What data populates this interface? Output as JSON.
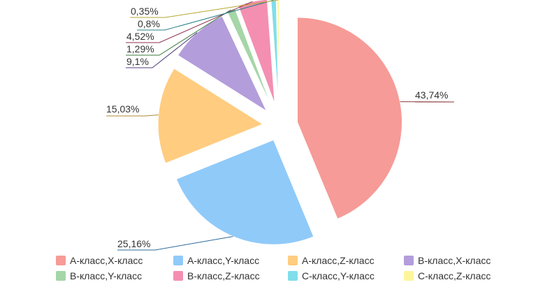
{
  "chart_data": {
    "type": "pie",
    "exploded": true,
    "legend_position": "bottom",
    "slices": [
      {
        "name": "A-класс,X-класс",
        "value": 43.74,
        "label": "43,74%",
        "color": "#f69b97",
        "line_color": "#8c3a3a"
      },
      {
        "name": "A-класс,Y-класс",
        "value": 25.16,
        "label": "25,16%",
        "color": "#90caf9",
        "line_color": "#2e6b9c"
      },
      {
        "name": "A-класс,Z-класс",
        "value": 15.03,
        "label": "15,03%",
        "color": "#ffcc80",
        "line_color": "#b08836"
      },
      {
        "name": "B-класс,X-класс",
        "value": 9.1,
        "label": "9,1%",
        "color": "#b39ddb",
        "line_color": "#4e3c78"
      },
      {
        "name": "B-класс,Y-класс",
        "value": 1.29,
        "label": "1,29%",
        "color": "#a5d6a7",
        "line_color": "#3d7a3f"
      },
      {
        "name": "B-класс,Z-класс",
        "value": 4.52,
        "label": "4,52%",
        "color": "#f48fb1",
        "line_color": "#8c2f53"
      },
      {
        "name": "C-класс,Y-класс",
        "value": 0.8,
        "label": "0,8%",
        "color": "#80deea",
        "line_color": "#2a7f87"
      },
      {
        "name": "C-класс,Z-класс",
        "value": 0.35,
        "label": "0,35%",
        "color": "#fff59d",
        "line_color": "#b5a72f"
      }
    ]
  }
}
